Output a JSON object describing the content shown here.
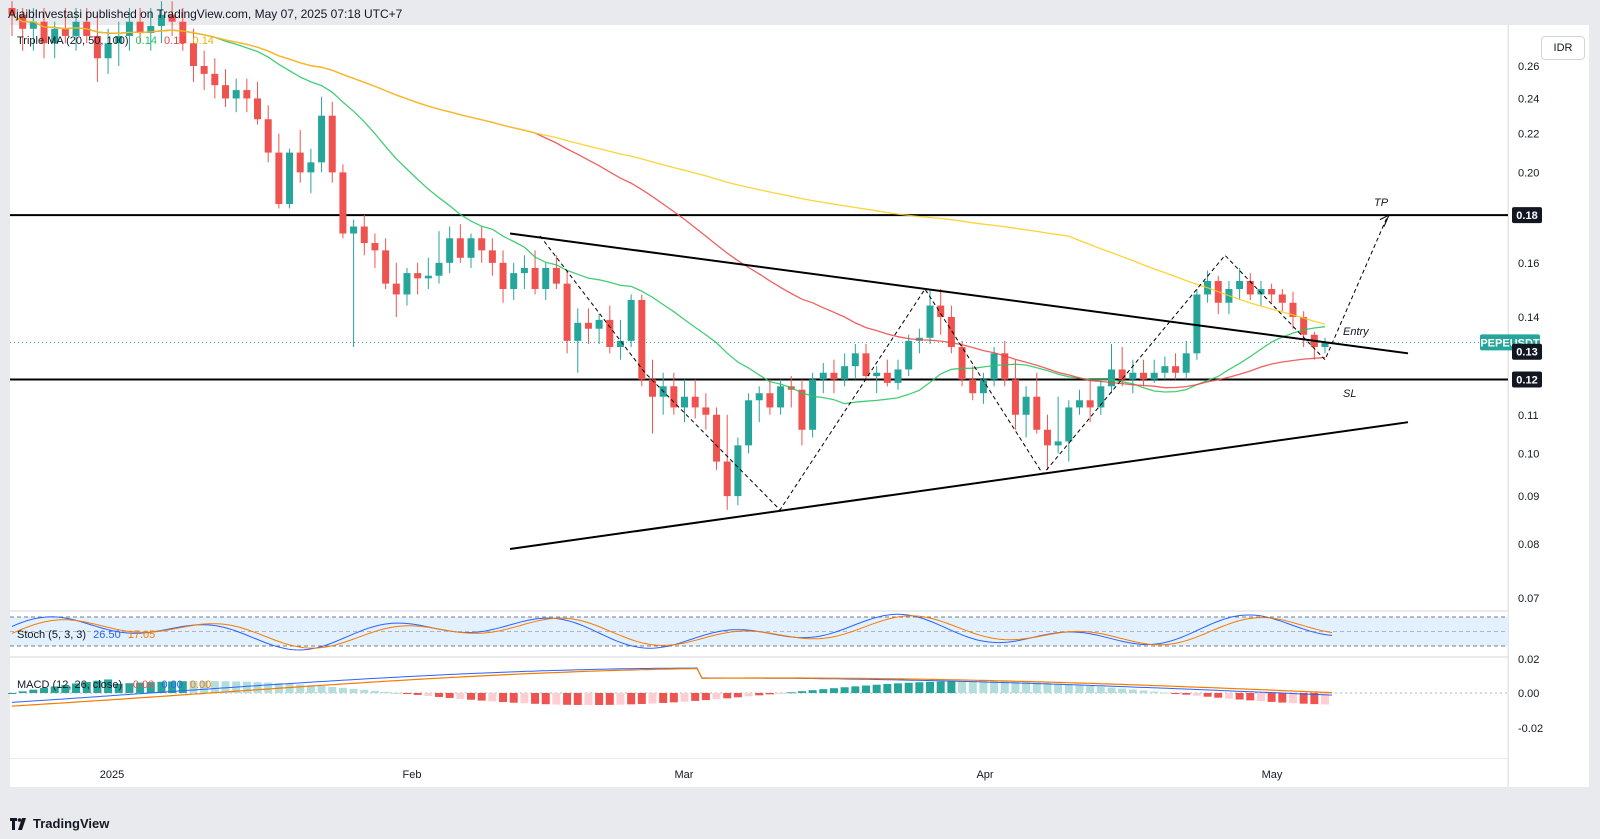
{
  "header": {
    "published": "AjaibInvestasi published on TradingView.com, May 07, 2025 07:18 UTC+7"
  },
  "brand": {
    "label": "TradingView",
    "icon": "tradingview-logo-icon"
  },
  "currency_button": "IDR",
  "indicators": {
    "ma": {
      "label": "Triple MA (20, 50, 100)",
      "v1": "0.14",
      "v2": "0.13",
      "v3": "0.14",
      "c1": "#22c55e",
      "c2": "#ef4444",
      "c3": "#eab308"
    },
    "stoch": {
      "label": "Stoch (5, 3, 3)",
      "k": "26.50",
      "d": "17.05",
      "kcolor": "#2962ff",
      "dcolor": "#f57c00"
    },
    "macd": {
      "label": "MACD (12, 26, close)",
      "hist": "-0.00",
      "macd": "0.00",
      "signal": "0.00",
      "hcolor": "#ef5350",
      "mcolor": "#2962ff",
      "scolor": "#f57c00"
    }
  },
  "annotations": {
    "tp": "TP",
    "entry": "Entry",
    "sl": "SL"
  },
  "chart_data": {
    "type": "candlestick",
    "symbol": "PEPEUSDT",
    "price_scale_labels": [
      "0.26",
      "0.24",
      "0.22",
      "0.20",
      "0.18",
      "0.16",
      "0.14",
      "0.13",
      "0.12",
      "0.11",
      "0.10",
      "0.09",
      "0.08",
      "0.07"
    ],
    "macd_scale_labels": [
      "0.02",
      "0.00",
      "-0.02"
    ],
    "x_labels": [
      "2025",
      "Feb",
      "Mar",
      "Apr",
      "May"
    ],
    "price_badges": [
      {
        "label": "0.18",
        "value": 0.18,
        "bg": "#131722",
        "fg": "#ffffff"
      },
      {
        "label": "PEPEUSDT",
        "value": 0.1315,
        "bg": "#26a69a",
        "fg": "#ffffff"
      },
      {
        "label": "0.13",
        "value": 0.1285,
        "bg": "#131722",
        "fg": "#ffffff"
      },
      {
        "label": "0.12",
        "value": 0.12,
        "bg": "#131722",
        "fg": "#ffffff"
      }
    ],
    "horizontal_levels": [
      0.18,
      0.12
    ],
    "colors": {
      "up": "#26a69a",
      "down": "#ef5350",
      "ma20": "#22c55e",
      "ma50": "#ef4444",
      "ma100": "#facc15"
    },
    "candles": [
      [
        0.3,
        0.305,
        0.28,
        0.295
      ],
      [
        0.295,
        0.3,
        0.27,
        0.285
      ],
      [
        0.285,
        0.3,
        0.27,
        0.29
      ],
      [
        0.29,
        0.3,
        0.265,
        0.275
      ],
      [
        0.275,
        0.29,
        0.265,
        0.285
      ],
      [
        0.285,
        0.3,
        0.275,
        0.28
      ],
      [
        0.28,
        0.3,
        0.27,
        0.29
      ],
      [
        0.29,
        0.3,
        0.275,
        0.28
      ],
      [
        0.28,
        0.295,
        0.25,
        0.265
      ],
      [
        0.265,
        0.285,
        0.255,
        0.275
      ],
      [
        0.275,
        0.29,
        0.26,
        0.28
      ],
      [
        0.28,
        0.3,
        0.27,
        0.29
      ],
      [
        0.29,
        0.3,
        0.275,
        0.282
      ],
      [
        0.282,
        0.3,
        0.27,
        0.287
      ],
      [
        0.287,
        0.305,
        0.275,
        0.295
      ],
      [
        0.295,
        0.305,
        0.28,
        0.29
      ],
      [
        0.29,
        0.3,
        0.27,
        0.275
      ],
      [
        0.275,
        0.285,
        0.25,
        0.26
      ],
      [
        0.26,
        0.27,
        0.245,
        0.255
      ],
      [
        0.255,
        0.265,
        0.24,
        0.248
      ],
      [
        0.248,
        0.258,
        0.235,
        0.24
      ],
      [
        0.24,
        0.252,
        0.232,
        0.245
      ],
      [
        0.245,
        0.252,
        0.232,
        0.24
      ],
      [
        0.24,
        0.25,
        0.225,
        0.228
      ],
      [
        0.228,
        0.236,
        0.205,
        0.21
      ],
      [
        0.21,
        0.22,
        0.183,
        0.185
      ],
      [
        0.185,
        0.212,
        0.183,
        0.21
      ],
      [
        0.21,
        0.222,
        0.195,
        0.2
      ],
      [
        0.2,
        0.212,
        0.19,
        0.205
      ],
      [
        0.205,
        0.241,
        0.2,
        0.23
      ],
      [
        0.23,
        0.238,
        0.195,
        0.2
      ],
      [
        0.2,
        0.204,
        0.17,
        0.172
      ],
      [
        0.172,
        0.178,
        0.13,
        0.175
      ],
      [
        0.175,
        0.18,
        0.163,
        0.168
      ],
      [
        0.168,
        0.172,
        0.158,
        0.165
      ],
      [
        0.165,
        0.17,
        0.15,
        0.152
      ],
      [
        0.152,
        0.16,
        0.14,
        0.148
      ],
      [
        0.148,
        0.158,
        0.144,
        0.156
      ],
      [
        0.156,
        0.16,
        0.148,
        0.154
      ],
      [
        0.154,
        0.162,
        0.15,
        0.155
      ],
      [
        0.155,
        0.173,
        0.152,
        0.16
      ],
      [
        0.16,
        0.175,
        0.156,
        0.17
      ],
      [
        0.17,
        0.176,
        0.16,
        0.162
      ],
      [
        0.162,
        0.172,
        0.158,
        0.17
      ],
      [
        0.17,
        0.175,
        0.16,
        0.165
      ],
      [
        0.165,
        0.17,
        0.155,
        0.16
      ],
      [
        0.16,
        0.165,
        0.145,
        0.15
      ],
      [
        0.15,
        0.16,
        0.146,
        0.156
      ],
      [
        0.156,
        0.163,
        0.15,
        0.158
      ],
      [
        0.158,
        0.165,
        0.148,
        0.15
      ],
      [
        0.15,
        0.16,
        0.146,
        0.158
      ],
      [
        0.158,
        0.163,
        0.15,
        0.152
      ],
      [
        0.152,
        0.157,
        0.128,
        0.132
      ],
      [
        0.132,
        0.143,
        0.122,
        0.138
      ],
      [
        0.138,
        0.143,
        0.131,
        0.136
      ],
      [
        0.136,
        0.141,
        0.131,
        0.139
      ],
      [
        0.139,
        0.144,
        0.128,
        0.13
      ],
      [
        0.13,
        0.139,
        0.126,
        0.132
      ],
      [
        0.132,
        0.148,
        0.13,
        0.146
      ],
      [
        0.146,
        0.148,
        0.118,
        0.12
      ],
      [
        0.12,
        0.126,
        0.105,
        0.115
      ],
      [
        0.115,
        0.122,
        0.11,
        0.118
      ],
      [
        0.118,
        0.122,
        0.11,
        0.112
      ],
      [
        0.112,
        0.12,
        0.108,
        0.115
      ],
      [
        0.115,
        0.12,
        0.109,
        0.112
      ],
      [
        0.112,
        0.116,
        0.106,
        0.11
      ],
      [
        0.11,
        0.112,
        0.096,
        0.098
      ],
      [
        0.098,
        0.11,
        0.087,
        0.09
      ],
      [
        0.09,
        0.104,
        0.088,
        0.102
      ],
      [
        0.102,
        0.116,
        0.1,
        0.114
      ],
      [
        0.114,
        0.118,
        0.108,
        0.116
      ],
      [
        0.116,
        0.12,
        0.11,
        0.112
      ],
      [
        0.112,
        0.12,
        0.11,
        0.118
      ],
      [
        0.118,
        0.121,
        0.112,
        0.117
      ],
      [
        0.117,
        0.12,
        0.102,
        0.106
      ],
      [
        0.106,
        0.122,
        0.104,
        0.12
      ],
      [
        0.12,
        0.125,
        0.116,
        0.122
      ],
      [
        0.122,
        0.126,
        0.116,
        0.12
      ],
      [
        0.12,
        0.128,
        0.118,
        0.124
      ],
      [
        0.124,
        0.131,
        0.12,
        0.128
      ],
      [
        0.128,
        0.131,
        0.12,
        0.121
      ],
      [
        0.121,
        0.124,
        0.116,
        0.122
      ],
      [
        0.122,
        0.126,
        0.118,
        0.119
      ],
      [
        0.119,
        0.126,
        0.117,
        0.123
      ],
      [
        0.123,
        0.134,
        0.121,
        0.132
      ],
      [
        0.132,
        0.136,
        0.128,
        0.133
      ],
      [
        0.133,
        0.15,
        0.131,
        0.144
      ],
      [
        0.144,
        0.15,
        0.134,
        0.14
      ],
      [
        0.14,
        0.144,
        0.128,
        0.13
      ],
      [
        0.13,
        0.132,
        0.118,
        0.12
      ],
      [
        0.12,
        0.124,
        0.114,
        0.116
      ],
      [
        0.116,
        0.122,
        0.113,
        0.12
      ],
      [
        0.12,
        0.13,
        0.118,
        0.128
      ],
      [
        0.128,
        0.132,
        0.118,
        0.12
      ],
      [
        0.12,
        0.126,
        0.106,
        0.11
      ],
      [
        0.11,
        0.118,
        0.104,
        0.115
      ],
      [
        0.115,
        0.122,
        0.105,
        0.106
      ],
      [
        0.106,
        0.11,
        0.096,
        0.102
      ],
      [
        0.102,
        0.115,
        0.1,
        0.103
      ],
      [
        0.103,
        0.114,
        0.098,
        0.112
      ],
      [
        0.112,
        0.117,
        0.11,
        0.114
      ],
      [
        0.114,
        0.12,
        0.108,
        0.112
      ],
      [
        0.112,
        0.12,
        0.11,
        0.118
      ],
      [
        0.118,
        0.131,
        0.116,
        0.123
      ],
      [
        0.123,
        0.13,
        0.118,
        0.12
      ],
      [
        0.12,
        0.126,
        0.116,
        0.122
      ],
      [
        0.122,
        0.126,
        0.118,
        0.12
      ],
      [
        0.12,
        0.126,
        0.119,
        0.122
      ],
      [
        0.122,
        0.127,
        0.12,
        0.124
      ],
      [
        0.124,
        0.128,
        0.12,
        0.122
      ],
      [
        0.122,
        0.132,
        0.12,
        0.128
      ],
      [
        0.128,
        0.15,
        0.126,
        0.148
      ],
      [
        0.148,
        0.157,
        0.145,
        0.153
      ],
      [
        0.153,
        0.155,
        0.141,
        0.145
      ],
      [
        0.145,
        0.153,
        0.141,
        0.15
      ],
      [
        0.15,
        0.158,
        0.146,
        0.153
      ],
      [
        0.153,
        0.156,
        0.146,
        0.148
      ],
      [
        0.148,
        0.153,
        0.144,
        0.15
      ],
      [
        0.15,
        0.152,
        0.145,
        0.148
      ],
      [
        0.148,
        0.15,
        0.142,
        0.145
      ],
      [
        0.145,
        0.149,
        0.136,
        0.14
      ],
      [
        0.14,
        0.142,
        0.13,
        0.134
      ],
      [
        0.134,
        0.135,
        0.126,
        0.13
      ],
      [
        0.13,
        0.133,
        0.128,
        0.1315
      ]
    ]
  }
}
